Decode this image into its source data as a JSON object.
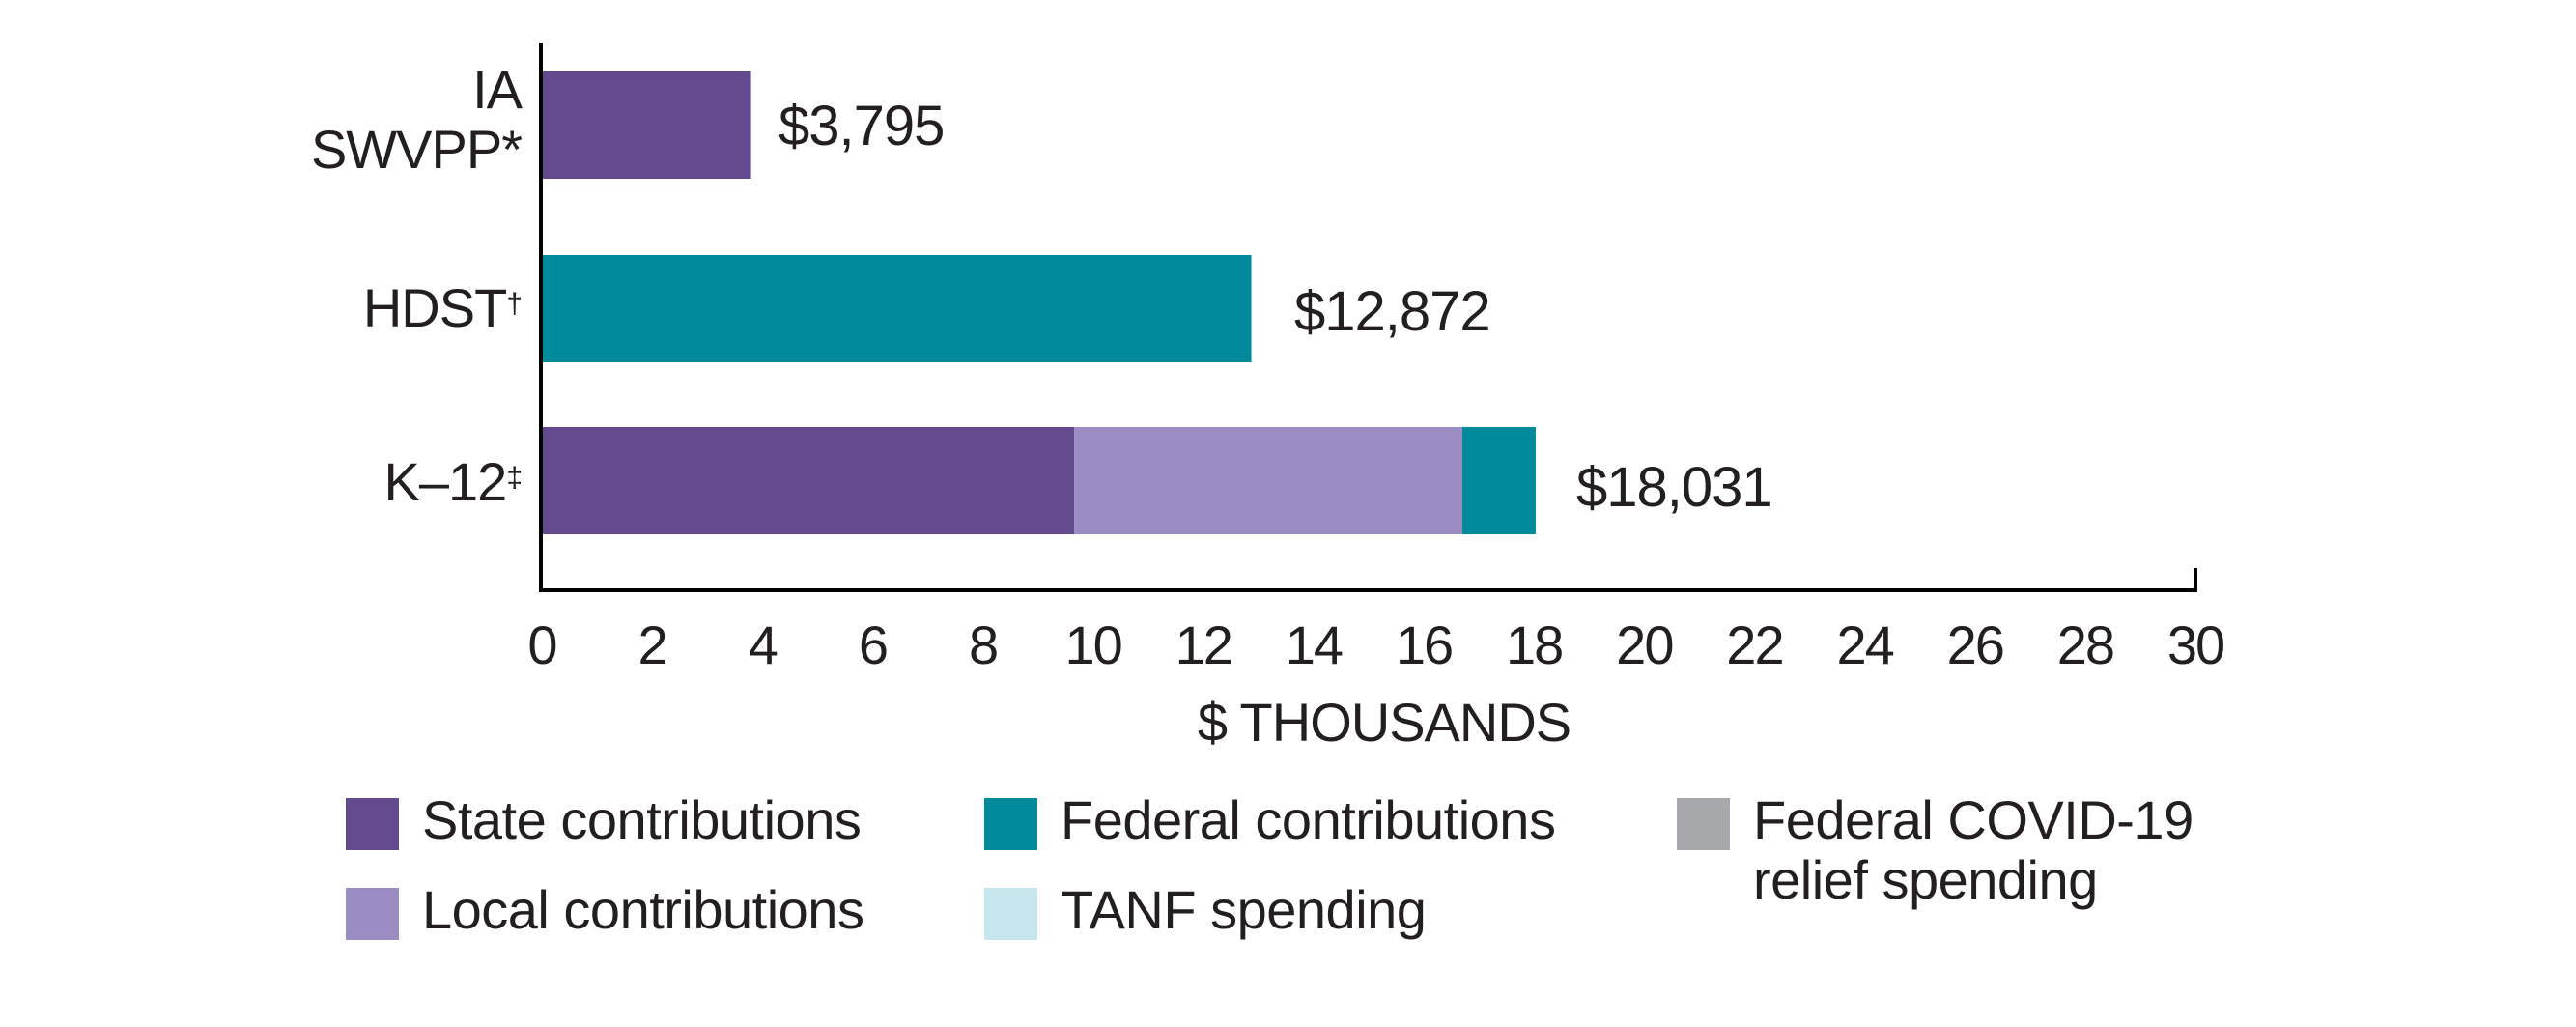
{
  "chart_data": {
    "type": "bar",
    "orientation": "horizontal",
    "stacked": true,
    "title": "",
    "xlabel": "$ THOUSANDS",
    "ylabel": "",
    "xlim": [
      0,
      30
    ],
    "x_ticks": [
      "0",
      "2",
      "4",
      "6",
      "8",
      "10",
      "12",
      "14",
      "16",
      "18",
      "20",
      "22",
      "24",
      "26",
      "28",
      "30"
    ],
    "grid": false,
    "legend_position": "bottom",
    "categories": [
      {
        "label": "IA",
        "label2": "SWVPP",
        "mark": "*"
      },
      {
        "label": "HDST",
        "label2": "",
        "mark": "†"
      },
      {
        "label": "K–12",
        "label2": "",
        "mark": "‡"
      }
    ],
    "series": [
      {
        "name": "State contributions",
        "color": "#634a8f",
        "values": [
          3.795,
          0,
          9.66
        ]
      },
      {
        "name": "Local contributions",
        "color": "#9b8cc3",
        "values": [
          0,
          0,
          7.04
        ]
      },
      {
        "name": "Federal contributions",
        "color": "#008a9c",
        "values": [
          0,
          12.872,
          1.331
        ]
      },
      {
        "name": "TANF spending",
        "color": "#c6e6ee",
        "values": [
          0,
          0,
          0
        ]
      },
      {
        "name": "Federal COVID-19 relief spending",
        "color": "#a7a8ab",
        "values": [
          0,
          0,
          0
        ]
      }
    ],
    "totals": [
      3.795,
      12.872,
      18.031
    ],
    "total_labels": [
      "$3,795",
      "$12,872",
      "$18,031"
    ]
  },
  "legend": [
    {
      "line1": "State contributions",
      "line2": "",
      "color": "#634a8f"
    },
    {
      "line1": "Local contributions",
      "line2": "",
      "color": "#9b8cc3"
    },
    {
      "line1": "Federal contributions",
      "line2": "",
      "color": "#008a9c"
    },
    {
      "line1": "TANF spending",
      "line2": "",
      "color": "#c6e6ee"
    },
    {
      "line1": "Federal COVID-19",
      "line2": "relief spending",
      "color": "#a7a8ab"
    }
  ]
}
